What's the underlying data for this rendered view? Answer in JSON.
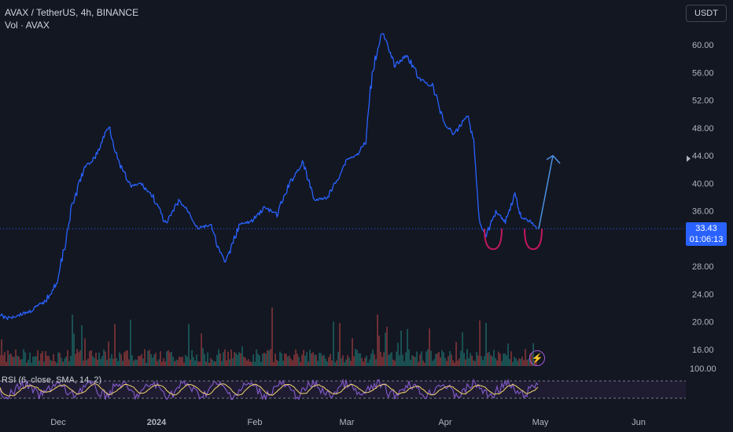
{
  "header": {
    "symbol_line": "AVAX / TetherUS, 4h, BINANCE",
    "volume_line": "Vol · AVAX"
  },
  "currency_button": "USDT",
  "last_price": {
    "price": "33.43",
    "countdown": "01:06:13"
  },
  "rsi_label": "RSI (6, close, SMA, 14, 2)",
  "rsi_top_label": "100.00",
  "colors": {
    "background": "#131722",
    "price_line": "#2962ff",
    "volume_up": "#26a69a",
    "volume_down": "#ef5350",
    "rsi_line": "#7e57c2",
    "rsi_ma": "#f5d76e",
    "pattern_red": "#c2185b",
    "arrow": "#4a90e2"
  },
  "chart_data": {
    "type": "line",
    "title": "AVAX / TetherUS, 4h, BINANCE",
    "x": [
      "2023-11-08",
      "2023-11-15",
      "2023-11-22",
      "2023-11-27",
      "2023-12-01",
      "2023-12-05",
      "2023-12-09",
      "2023-12-13",
      "2023-12-17",
      "2023-12-20",
      "2023-12-24",
      "2023-12-27",
      "2023-12-31",
      "2024-01-04",
      "2024-01-08",
      "2024-01-11",
      "2024-01-14",
      "2024-01-18",
      "2024-01-21",
      "2024-01-23",
      "2024-01-27",
      "2024-01-31",
      "2024-02-04",
      "2024-02-08",
      "2024-02-12",
      "2024-02-16",
      "2024-02-20",
      "2024-02-24",
      "2024-02-28",
      "2024-03-01",
      "2024-03-04",
      "2024-03-07",
      "2024-03-09",
      "2024-03-12",
      "2024-03-16",
      "2024-03-20",
      "2024-03-24",
      "2024-03-28",
      "2024-04-01",
      "2024-04-04",
      "2024-04-08",
      "2024-04-10",
      "2024-04-12",
      "2024-04-14",
      "2024-04-17",
      "2024-04-20",
      "2024-04-23",
      "2024-04-25",
      "2024-04-28",
      "2024-04-30"
    ],
    "values": [
      22.0,
      20.5,
      21.5,
      23.0,
      26.0,
      36.0,
      42.0,
      44.0,
      48.5,
      43.0,
      39.5,
      40.0,
      38.0,
      34.0,
      37.5,
      36.0,
      33.5,
      34.0,
      30.0,
      28.5,
      34.0,
      34.5,
      36.5,
      35.5,
      40.0,
      43.0,
      37.5,
      38.0,
      41.5,
      43.5,
      44.0,
      46.0,
      56.0,
      62.0,
      57.0,
      58.5,
      55.0,
      54.0,
      48.5,
      47.0,
      50.0,
      46.0,
      34.0,
      32.5,
      36.0,
      34.5,
      38.5,
      35.0,
      34.5,
      33.4
    ],
    "projection": {
      "from": {
        "x": "2024-04-30",
        "y": 33.43
      },
      "to": {
        "x": "2024-05-02",
        "y": 44.0
      }
    },
    "last_price": 33.43,
    "y_ticks": [
      "60.00",
      "56.00",
      "52.00",
      "48.00",
      "44.00",
      "40.00",
      "36.00",
      "32.00",
      "28.00",
      "24.00",
      "20.00",
      "16.00"
    ],
    "x_ticks": [
      "Dec",
      "2024",
      "Feb",
      "Mar",
      "Apr",
      "May",
      "Jun"
    ],
    "ylim": [
      12,
      66
    ],
    "grid": false
  }
}
